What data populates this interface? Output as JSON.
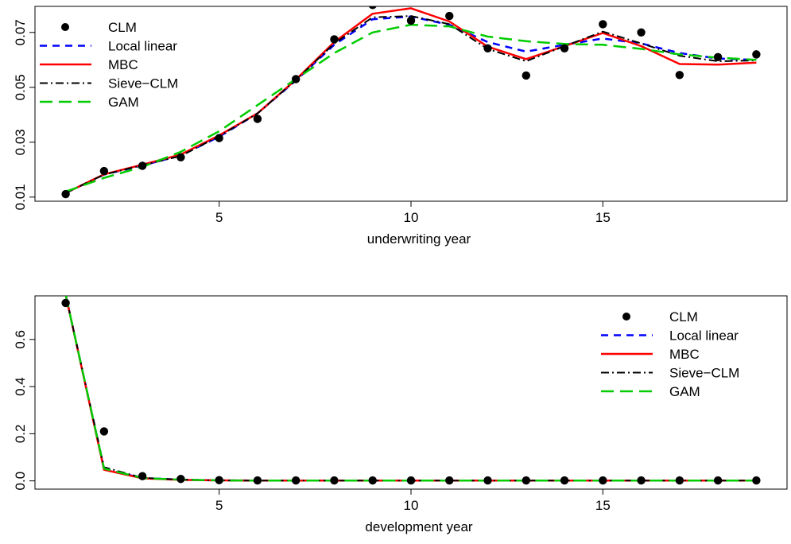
{
  "chart_data": [
    {
      "type": "line",
      "xlabel": "underwriting year",
      "ylabel": "",
      "xlim": [
        0.2,
        19.8
      ],
      "ylim": [
        0.0085,
        0.0795
      ],
      "x_ticks": [
        5,
        10,
        15
      ],
      "x_tick_labels": [
        "5",
        "10",
        "15"
      ],
      "y_ticks": [
        0.01,
        0.03,
        0.05,
        0.07
      ],
      "y_tick_labels": [
        "0.01",
        "0.03",
        "0.05",
        "0.07"
      ],
      "grid": false,
      "legend_position": "top-left",
      "x": [
        1,
        2,
        3,
        4,
        5,
        6,
        7,
        8,
        9,
        10,
        11,
        12,
        13,
        14,
        15,
        16,
        17,
        18,
        19
      ],
      "points": {
        "name": "CLM",
        "color": "#000000",
        "values": [
          0.0111,
          0.0195,
          0.0214,
          0.0245,
          0.0315,
          0.0385,
          0.053,
          0.0675,
          0.08,
          0.0743,
          0.076,
          0.0642,
          0.0543,
          0.0642,
          0.073,
          0.07,
          0.0545,
          0.061,
          0.062
        ]
      },
      "series": [
        {
          "name": "Local linear",
          "color": "#0000ff",
          "dash": "9 7",
          "width": 2.5,
          "values": [
            0.0115,
            0.0182,
            0.0215,
            0.0252,
            0.032,
            0.0405,
            0.0525,
            0.0655,
            0.0748,
            0.0758,
            0.0728,
            0.0665,
            0.063,
            0.0655,
            0.0678,
            0.066,
            0.0625,
            0.0605,
            0.06
          ]
        },
        {
          "name": "MBC",
          "color": "#ff0000",
          "dash": "",
          "width": 2.5,
          "values": [
            0.0115,
            0.0183,
            0.0218,
            0.0255,
            0.0325,
            0.0405,
            0.0528,
            0.0665,
            0.0768,
            0.0788,
            0.074,
            0.0648,
            0.0603,
            0.065,
            0.0698,
            0.065,
            0.0585,
            0.0583,
            0.059
          ]
        },
        {
          "name": "Sieve-CLM",
          "color": "#000000",
          "dash": "10 4 2 4",
          "width": 2,
          "values": [
            0.0115,
            0.0182,
            0.0216,
            0.025,
            0.0322,
            0.0405,
            0.0526,
            0.066,
            0.0755,
            0.076,
            0.073,
            0.064,
            0.0595,
            0.065,
            0.0703,
            0.066,
            0.0615,
            0.0595,
            0.0598
          ]
        },
        {
          "name": "GAM",
          "color": "#00cc00",
          "dash": "16 8",
          "width": 2.5,
          "values": [
            0.012,
            0.017,
            0.021,
            0.0265,
            0.034,
            0.0435,
            0.053,
            0.0625,
            0.07,
            0.0728,
            0.0722,
            0.0685,
            0.0668,
            0.0658,
            0.0655,
            0.064,
            0.062,
            0.0608,
            0.06
          ]
        }
      ]
    },
    {
      "type": "line",
      "xlabel": "development year",
      "ylabel": "",
      "xlim": [
        0.2,
        19.8
      ],
      "ylim": [
        -0.035,
        0.785
      ],
      "x_ticks": [
        5,
        10,
        15
      ],
      "x_tick_labels": [
        "5",
        "10",
        "15"
      ],
      "y_ticks": [
        0.0,
        0.2,
        0.4,
        0.6
      ],
      "y_tick_labels": [
        "0.0",
        "0.2",
        "0.4",
        "0.6"
      ],
      "grid": false,
      "legend_position": "top-right",
      "x": [
        1,
        2,
        3,
        4,
        5,
        6,
        7,
        8,
        9,
        10,
        11,
        12,
        13,
        14,
        15,
        16,
        17,
        18,
        19
      ],
      "points": {
        "name": "CLM",
        "color": "#000000",
        "values": [
          0.755,
          0.21,
          0.02,
          0.008,
          0.003,
          0.002,
          0.002,
          0.002,
          0.002,
          0.002,
          0.002,
          0.002,
          0.002,
          0.002,
          0.002,
          0.002,
          0.002,
          0.002,
          0.002
        ]
      },
      "series": [
        {
          "name": "Local linear",
          "color": "#0000ff",
          "dash": "9 7",
          "width": 2.5,
          "values": [
            0.79,
            0.05,
            0.012,
            0.005,
            0.002,
            0.001,
            0.001,
            0.001,
            0.001,
            0.001,
            0.001,
            0.001,
            0.001,
            0.001,
            0.001,
            0.001,
            0.001,
            0.001,
            0.001
          ]
        },
        {
          "name": "MBC",
          "color": "#ff0000",
          "dash": "",
          "width": 2.5,
          "values": [
            0.79,
            0.047,
            0.011,
            0.004,
            0.002,
            0.001,
            0.001,
            0.001,
            0.001,
            0.001,
            0.001,
            0.001,
            0.001,
            0.001,
            0.001,
            0.001,
            0.001,
            0.001,
            0.001
          ]
        },
        {
          "name": "Sieve-CLM",
          "color": "#000000",
          "dash": "10 4 2 4",
          "width": 2,
          "values": [
            0.79,
            0.058,
            0.013,
            0.005,
            0.002,
            0.001,
            0.001,
            0.001,
            0.001,
            0.001,
            0.001,
            0.001,
            0.001,
            0.001,
            0.001,
            0.001,
            0.001,
            0.001,
            0.001
          ]
        },
        {
          "name": "GAM",
          "color": "#00cc00",
          "dash": "16 8",
          "width": 2.5,
          "values": [
            0.79,
            0.052,
            0.012,
            0.005,
            0.002,
            0.001,
            0.001,
            0.001,
            0.001,
            0.001,
            0.001,
            0.001,
            0.001,
            0.001,
            0.001,
            0.001,
            0.001,
            0.001,
            0.001
          ]
        }
      ]
    }
  ]
}
